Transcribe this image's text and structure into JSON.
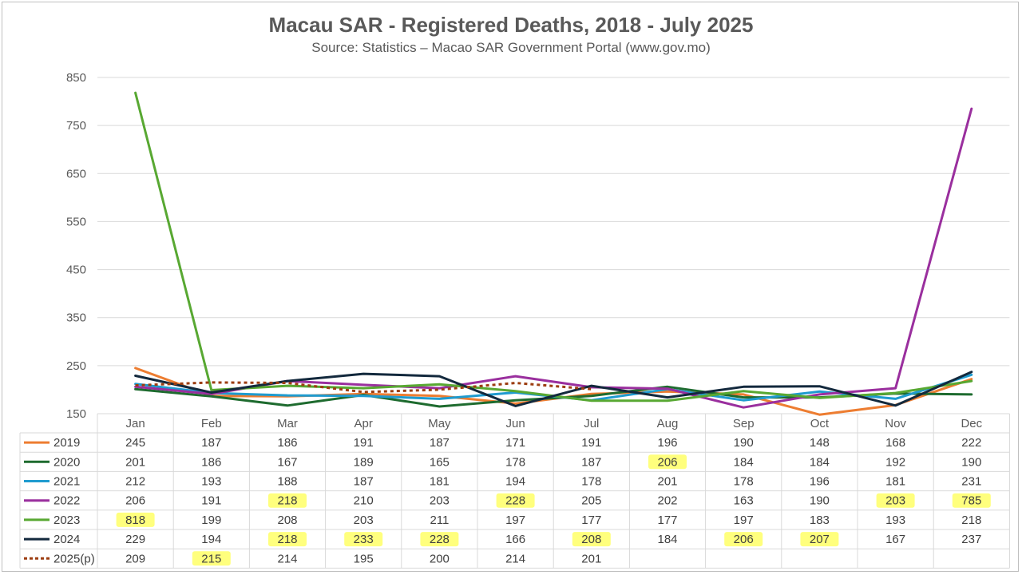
{
  "chart_data": {
    "type": "line",
    "title": "Macau SAR - Registered Deaths, 2018 - July 2025",
    "subtitle": "Source: Statistics – Macao SAR Government Portal (www.gov.mo)",
    "xlabel": "",
    "ylabel": "",
    "ylim": [
      150,
      850
    ],
    "yticks": [
      150,
      250,
      350,
      450,
      550,
      650,
      750,
      850
    ],
    "grid": true,
    "legend": "data-table-left",
    "categories": [
      "Jan",
      "Feb",
      "Mar",
      "Apr",
      "May",
      "Jun",
      "Jul",
      "Aug",
      "Sep",
      "Oct",
      "Nov",
      "Dec"
    ],
    "series": [
      {
        "name": "2019",
        "color": "#ed7d31",
        "dashed": false,
        "values": [
          245,
          187,
          186,
          191,
          187,
          171,
          191,
          196,
          190,
          148,
          168,
          222
        ],
        "highlight": []
      },
      {
        "name": "2020",
        "color": "#1e6b2f",
        "dashed": false,
        "values": [
          201,
          186,
          167,
          189,
          165,
          178,
          187,
          206,
          184,
          184,
          192,
          190
        ],
        "highlight": [
          7
        ]
      },
      {
        "name": "2021",
        "color": "#1f9bcf",
        "dashed": false,
        "values": [
          212,
          193,
          188,
          187,
          181,
          194,
          178,
          201,
          178,
          196,
          181,
          231
        ],
        "highlight": []
      },
      {
        "name": "2022",
        "color": "#9a2f9e",
        "dashed": false,
        "values": [
          206,
          191,
          218,
          210,
          203,
          228,
          205,
          202,
          163,
          190,
          203,
          785
        ],
        "highlight": [
          2,
          5,
          10,
          11
        ]
      },
      {
        "name": "2023",
        "color": "#58a832",
        "dashed": false,
        "values": [
          818,
          199,
          208,
          203,
          211,
          197,
          177,
          177,
          197,
          183,
          193,
          218
        ],
        "highlight": [
          0
        ]
      },
      {
        "name": "2024",
        "color": "#13293d",
        "dashed": false,
        "values": [
          229,
          194,
          218,
          233,
          228,
          166,
          208,
          184,
          206,
          207,
          167,
          237
        ],
        "highlight": [
          2,
          3,
          4,
          6,
          8,
          9
        ]
      },
      {
        "name": "2025(p)",
        "color": "#9c3d10",
        "dashed": true,
        "values": [
          209,
          215,
          214,
          195,
          200,
          214,
          201,
          null,
          null,
          null,
          null,
          null
        ],
        "highlight": [
          1
        ]
      }
    ]
  }
}
